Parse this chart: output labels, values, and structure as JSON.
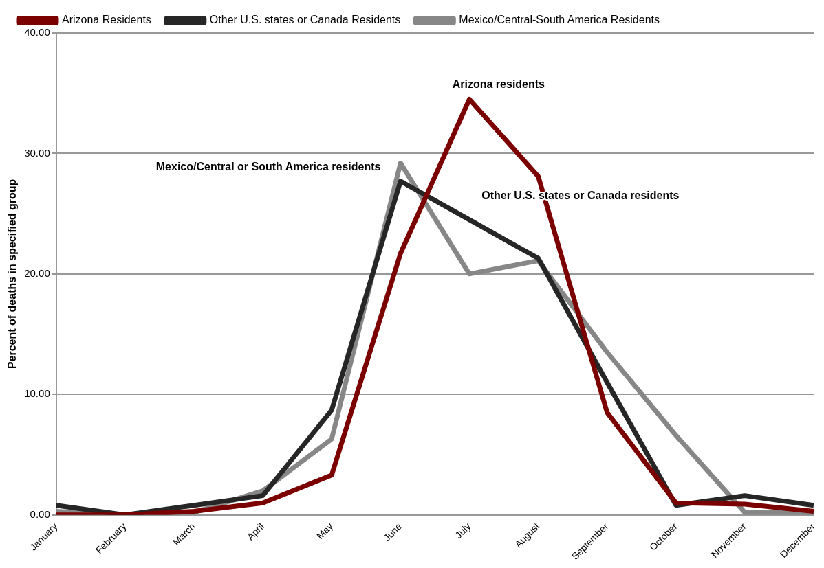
{
  "chart_data": {
    "type": "line",
    "ylabel": "Percent of deaths in specified group",
    "categories": [
      "January",
      "February",
      "March",
      "April",
      "May",
      "June",
      "July",
      "August",
      "September",
      "October",
      "November",
      "December"
    ],
    "series": [
      {
        "name": "Arizona Residents",
        "color": "#7b0000",
        "values": [
          0.0,
          0.0,
          0.3,
          1.0,
          3.3,
          21.7,
          34.5,
          28.1,
          8.5,
          1.0,
          0.9,
          0.3
        ]
      },
      {
        "name": "Other U.S. states or Canada Residents",
        "color": "#262626",
        "values": [
          0.8,
          0.0,
          0.8,
          1.6,
          8.7,
          27.7,
          24.5,
          21.3,
          11.0,
          0.8,
          1.6,
          0.8
        ]
      },
      {
        "name": "Mexico/Central-South America Residents",
        "color": "#878787",
        "values": [
          0.3,
          0.0,
          0.2,
          2.0,
          6.3,
          29.2,
          20.0,
          21.1,
          13.5,
          6.6,
          0.2,
          0.2
        ]
      }
    ],
    "ylim": [
      0,
      40
    ],
    "yticks": [
      {
        "value": 0,
        "label": "0.00"
      },
      {
        "value": 10,
        "label": "10.00"
      },
      {
        "value": 20,
        "label": "20.00"
      },
      {
        "value": 30,
        "label": "30.00"
      },
      {
        "value": 40,
        "label": "40.00"
      }
    ],
    "grid": "y",
    "legend": "top",
    "marker": "none",
    "line_style": "solid",
    "annotations": [
      "Arizona residents",
      "Mexico/Central or South America residents",
      "Other U.S. states or Canada residents"
    ]
  }
}
